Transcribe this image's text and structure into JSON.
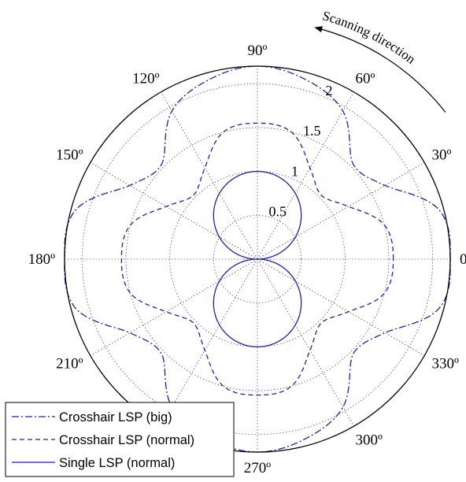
{
  "chart_data": {
    "type": "polar-line",
    "rlim": [
      0,
      2.2
    ],
    "radial_ticks": [
      {
        "value": 0.5,
        "label": "0.5"
      },
      {
        "value": 1,
        "label": "1"
      },
      {
        "value": 1.5,
        "label": "1.5"
      },
      {
        "value": 2,
        "label": "2"
      }
    ],
    "angle_ticks": [
      {
        "deg": 0,
        "label": "0º"
      },
      {
        "deg": 30,
        "label": "30º"
      },
      {
        "deg": 60,
        "label": "60º"
      },
      {
        "deg": 90,
        "label": "90º"
      },
      {
        "deg": 120,
        "label": "120º"
      },
      {
        "deg": 150,
        "label": "150º"
      },
      {
        "deg": 180,
        "label": "180º"
      },
      {
        "deg": 210,
        "label": "210º"
      },
      {
        "deg": 240,
        "label": ""
      },
      {
        "deg": 270,
        "label": "270º"
      },
      {
        "deg": 300,
        "label": "300º"
      },
      {
        "deg": 330,
        "label": "330º"
      }
    ],
    "grid": true,
    "annotation": "Scanning direction",
    "legend_position": "bottom-left",
    "series": [
      {
        "name": "Crosshair LSP (big)",
        "style": "dashdot",
        "color": "#1f1fb4",
        "angles_deg": [
          0,
          15,
          30,
          45,
          60,
          75,
          90,
          105,
          120,
          135,
          150,
          165,
          180,
          195,
          210,
          225,
          240,
          255,
          270,
          285,
          300,
          315,
          330,
          345
        ],
        "r": [
          2.2,
          2.15,
          1.68,
          1.54,
          1.95,
          2.12,
          2.2,
          2.12,
          1.95,
          1.54,
          1.68,
          2.15,
          2.2,
          2.15,
          1.68,
          1.54,
          1.95,
          2.12,
          2.2,
          2.12,
          1.95,
          1.54,
          1.68,
          2.15
        ]
      },
      {
        "name": "Crosshair LSP (normal)",
        "style": "dashed",
        "color": "#1f1fb4",
        "angles_deg": [
          0,
          15,
          30,
          45,
          60,
          75,
          90,
          105,
          120,
          135,
          150,
          165,
          180,
          195,
          210,
          225,
          240,
          255,
          270,
          285,
          300,
          315,
          330,
          345
        ],
        "r": [
          1.55,
          1.5,
          1.2,
          1.03,
          1.2,
          1.5,
          1.55,
          1.5,
          1.2,
          1.03,
          1.2,
          1.5,
          1.55,
          1.5,
          1.2,
          1.03,
          1.2,
          1.5,
          1.55,
          1.5,
          1.2,
          1.03,
          1.2,
          1.5
        ]
      },
      {
        "name": "Single LSP (normal)",
        "style": "solid",
        "color": "#1f1fb4",
        "formula": "r = |sin(theta)|",
        "r_max": 1
      }
    ]
  }
}
